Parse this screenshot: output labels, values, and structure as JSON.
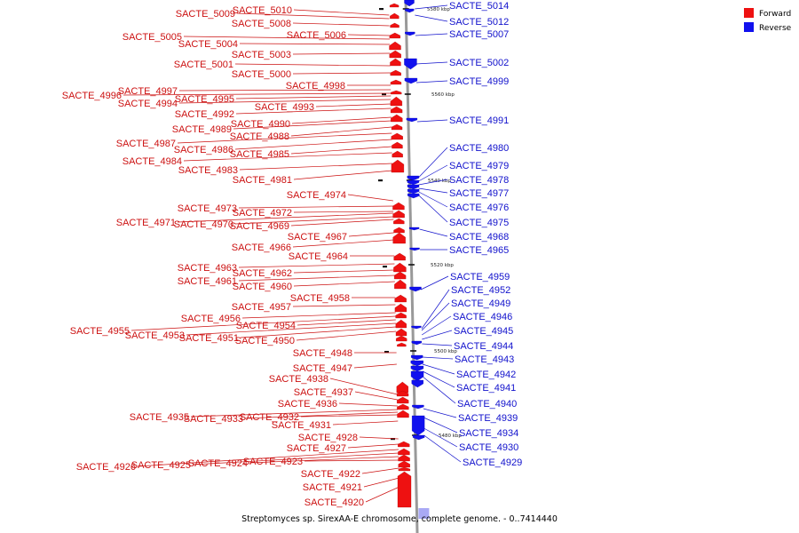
{
  "title": "Streptomyces sp. SirexAA-E chromosome, complete genome. - 0..7414440",
  "legend": [
    {
      "label": "Forward",
      "color": "#ee1111"
    },
    {
      "label": "Reverse",
      "color": "#1111ee"
    }
  ],
  "colors": {
    "forward": "#ee1111",
    "reverse": "#1111ee",
    "backbone": "#999999"
  },
  "ticks": [
    "5580 kbp",
    "5560 kbp",
    "5540 kbp",
    "5520 kbp",
    "5500 kbp",
    "5480 kbp"
  ],
  "forward_genes": [
    "SACTE_5010",
    "SACTE_5009",
    "SACTE_5008",
    "SACTE_5006",
    "SACTE_5005",
    "SACTE_5004",
    "SACTE_5003",
    "SACTE_5001",
    "SACTE_5000",
    "SACTE_4998",
    "SACTE_4997",
    "SACTE_4996",
    "SACTE_4995",
    "SACTE_4994",
    "SACTE_4993",
    "SACTE_4992",
    "SACTE_4990",
    "SACTE_4989",
    "SACTE_4988",
    "SACTE_4987",
    "SACTE_4986",
    "SACTE_4985",
    "SACTE_4984",
    "SACTE_4983",
    "SACTE_4981",
    "SACTE_4974",
    "SACTE_4973",
    "SACTE_4972",
    "SACTE_4971",
    "SACTE_4970",
    "SACTE_4969",
    "SACTE_4967",
    "SACTE_4966",
    "SACTE_4964",
    "SACTE_4963",
    "SACTE_4962",
    "SACTE_4961",
    "SACTE_4960",
    "SACTE_4958",
    "SACTE_4957",
    "SACTE_4956",
    "SACTE_4955",
    "SACTE_4954",
    "SACTE_4953",
    "SACTE_4951",
    "SACTE_4950",
    "SACTE_4948",
    "SACTE_4947",
    "SACTE_4938",
    "SACTE_4937",
    "SACTE_4936",
    "SACTE_4935",
    "SACTE_4933",
    "SACTE_4932",
    "SACTE_4931",
    "SACTE_4928",
    "SACTE_4927",
    "SACTE_4926",
    "SACTE_4925",
    "SACTE_4924",
    "SACTE_4923",
    "SACTE_4922",
    "SACTE_4921",
    "SACTE_4920"
  ],
  "reverse_genes": [
    "SACTE_5014",
    "SACTE_5012",
    "SACTE_5007",
    "SACTE_5002",
    "SACTE_4999",
    "SACTE_4991",
    "SACTE_4980",
    "SACTE_4979",
    "SACTE_4978",
    "SACTE_4977",
    "SACTE_4976",
    "SACTE_4975",
    "SACTE_4968",
    "SACTE_4965",
    "SACTE_4959",
    "SACTE_4952",
    "SACTE_4949",
    "SACTE_4946",
    "SACTE_4945",
    "SACTE_4944",
    "SACTE_4943",
    "SACTE_4942",
    "SACTE_4941",
    "SACTE_4940",
    "SACTE_4939",
    "SACTE_4934",
    "SACTE_4930",
    "SACTE_4929"
  ]
}
